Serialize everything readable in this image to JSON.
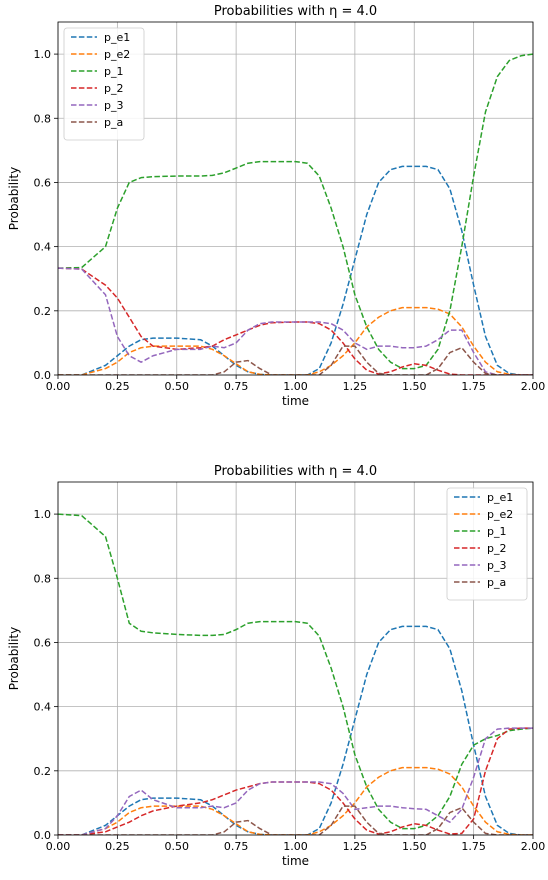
{
  "chart_data": [
    {
      "type": "line",
      "title": "Probabilities with η = 4.0",
      "xlabel": "time",
      "ylabel": "Probability",
      "xlim": [
        0,
        2
      ],
      "ylim": [
        0,
        1.1
      ],
      "xticks": [
        "0.00",
        "0.25",
        "0.50",
        "0.75",
        "1.00",
        "1.25",
        "1.50",
        "1.75",
        "2.00"
      ],
      "yticks": [
        "0.0",
        "0.2",
        "0.4",
        "0.6",
        "0.8",
        "1.0"
      ],
      "grid": true,
      "legend_position": "top-left",
      "x": [
        0,
        0.1,
        0.2,
        0.25,
        0.3,
        0.35,
        0.4,
        0.5,
        0.6,
        0.65,
        0.7,
        0.75,
        0.8,
        0.85,
        0.9,
        1.0,
        1.05,
        1.1,
        1.15,
        1.2,
        1.25,
        1.3,
        1.35,
        1.4,
        1.45,
        1.5,
        1.55,
        1.6,
        1.65,
        1.7,
        1.75,
        1.8,
        1.85,
        1.9,
        1.95,
        2.0
      ],
      "series": [
        {
          "name": "p_e1",
          "color": "#1f77b4",
          "values": [
            0,
            0,
            0.03,
            0.06,
            0.09,
            0.11,
            0.115,
            0.115,
            0.11,
            0.09,
            0.06,
            0.03,
            0.01,
            0.002,
            0,
            0,
            0,
            0.02,
            0.1,
            0.22,
            0.36,
            0.5,
            0.6,
            0.64,
            0.65,
            0.65,
            0.65,
            0.64,
            0.58,
            0.45,
            0.28,
            0.12,
            0.03,
            0.005,
            0,
            0
          ]
        },
        {
          "name": "p_e2",
          "color": "#ff7f0e",
          "values": [
            0,
            0,
            0.02,
            0.04,
            0.07,
            0.085,
            0.09,
            0.09,
            0.09,
            0.08,
            0.06,
            0.035,
            0.01,
            0.002,
            0,
            0,
            0,
            0.01,
            0.03,
            0.06,
            0.1,
            0.15,
            0.18,
            0.2,
            0.21,
            0.21,
            0.21,
            0.205,
            0.19,
            0.15,
            0.09,
            0.04,
            0.01,
            0.002,
            0,
            0
          ]
        },
        {
          "name": "p_1",
          "color": "#2ca02c",
          "values": [
            0.333,
            0.335,
            0.4,
            0.52,
            0.6,
            0.615,
            0.618,
            0.62,
            0.62,
            0.622,
            0.63,
            0.645,
            0.66,
            0.665,
            0.665,
            0.665,
            0.66,
            0.62,
            0.52,
            0.4,
            0.25,
            0.15,
            0.08,
            0.04,
            0.02,
            0.02,
            0.03,
            0.08,
            0.2,
            0.4,
            0.62,
            0.82,
            0.93,
            0.98,
            0.995,
            1.0
          ]
        },
        {
          "name": "p_2",
          "color": "#d62728",
          "values": [
            0.333,
            0.33,
            0.28,
            0.24,
            0.18,
            0.12,
            0.09,
            0.08,
            0.085,
            0.09,
            0.11,
            0.125,
            0.14,
            0.155,
            0.163,
            0.165,
            0.165,
            0.16,
            0.14,
            0.1,
            0.05,
            0.015,
            0.003,
            0.01,
            0.025,
            0.035,
            0.03,
            0.015,
            0.003,
            0,
            0,
            0,
            0,
            0,
            0,
            0
          ]
        },
        {
          "name": "p_3",
          "color": "#9467bd",
          "values": [
            0.333,
            0.33,
            0.25,
            0.12,
            0.06,
            0.04,
            0.06,
            0.08,
            0.08,
            0.09,
            0.085,
            0.1,
            0.14,
            0.16,
            0.165,
            0.165,
            0.165,
            0.165,
            0.16,
            0.14,
            0.1,
            0.08,
            0.09,
            0.09,
            0.085,
            0.085,
            0.09,
            0.11,
            0.14,
            0.14,
            0.07,
            0.01,
            0,
            0,
            0,
            0
          ]
        },
        {
          "name": "p_a",
          "color": "#8c564b",
          "values": [
            0,
            0,
            0,
            0,
            0,
            0,
            0,
            0,
            0,
            0,
            0.01,
            0.04,
            0.045,
            0.02,
            0,
            0,
            0,
            0,
            0.03,
            0.09,
            0.09,
            0.04,
            0.005,
            0,
            0,
            0,
            0,
            0.02,
            0.07,
            0.085,
            0.04,
            0.005,
            0,
            0,
            0,
            0
          ]
        }
      ]
    },
    {
      "type": "line",
      "title": "Probabilities with η = 4.0",
      "xlabel": "time",
      "ylabel": "Probability",
      "xlim": [
        0,
        2
      ],
      "ylim": [
        0,
        1.1
      ],
      "xticks": [
        "0.00",
        "0.25",
        "0.50",
        "0.75",
        "1.00",
        "1.25",
        "1.50",
        "1.75",
        "2.00"
      ],
      "yticks": [
        "0.0",
        "0.2",
        "0.4",
        "0.6",
        "0.8",
        "1.0"
      ],
      "grid": true,
      "legend_position": "top-right",
      "x": [
        0,
        0.1,
        0.2,
        0.25,
        0.3,
        0.35,
        0.4,
        0.5,
        0.6,
        0.65,
        0.7,
        0.75,
        0.8,
        0.85,
        0.9,
        1.0,
        1.05,
        1.1,
        1.15,
        1.2,
        1.25,
        1.3,
        1.35,
        1.4,
        1.45,
        1.5,
        1.55,
        1.6,
        1.65,
        1.7,
        1.75,
        1.8,
        1.85,
        1.9,
        1.95,
        2.0
      ],
      "series": [
        {
          "name": "p_e1",
          "color": "#1f77b4",
          "values": [
            0,
            0,
            0.03,
            0.06,
            0.09,
            0.11,
            0.115,
            0.115,
            0.11,
            0.09,
            0.06,
            0.03,
            0.01,
            0.002,
            0,
            0,
            0,
            0.02,
            0.1,
            0.22,
            0.36,
            0.5,
            0.6,
            0.64,
            0.65,
            0.65,
            0.65,
            0.64,
            0.58,
            0.45,
            0.28,
            0.12,
            0.03,
            0.005,
            0,
            0
          ]
        },
        {
          "name": "p_e2",
          "color": "#ff7f0e",
          "values": [
            0,
            0,
            0.02,
            0.04,
            0.07,
            0.085,
            0.09,
            0.09,
            0.09,
            0.08,
            0.06,
            0.035,
            0.01,
            0.002,
            0,
            0,
            0,
            0.01,
            0.03,
            0.06,
            0.1,
            0.15,
            0.18,
            0.2,
            0.21,
            0.21,
            0.21,
            0.205,
            0.19,
            0.15,
            0.09,
            0.04,
            0.01,
            0.002,
            0,
            0
          ]
        },
        {
          "name": "p_1",
          "color": "#2ca02c",
          "values": [
            1.0,
            0.995,
            0.93,
            0.8,
            0.66,
            0.635,
            0.63,
            0.625,
            0.622,
            0.622,
            0.625,
            0.64,
            0.66,
            0.665,
            0.665,
            0.665,
            0.66,
            0.62,
            0.52,
            0.4,
            0.25,
            0.15,
            0.08,
            0.04,
            0.02,
            0.02,
            0.03,
            0.06,
            0.12,
            0.22,
            0.28,
            0.3,
            0.31,
            0.325,
            0.33,
            0.333
          ]
        },
        {
          "name": "p_2",
          "color": "#d62728",
          "values": [
            0,
            0,
            0.01,
            0.025,
            0.04,
            0.06,
            0.075,
            0.09,
            0.1,
            0.11,
            0.125,
            0.14,
            0.15,
            0.16,
            0.165,
            0.165,
            0.165,
            0.16,
            0.14,
            0.1,
            0.05,
            0.015,
            0.003,
            0.01,
            0.025,
            0.035,
            0.03,
            0.015,
            0.003,
            0.005,
            0.05,
            0.2,
            0.3,
            0.33,
            0.333,
            0.333
          ]
        },
        {
          "name": "p_3",
          "color": "#9467bd",
          "values": [
            0,
            0,
            0.02,
            0.06,
            0.12,
            0.14,
            0.11,
            0.085,
            0.085,
            0.09,
            0.085,
            0.1,
            0.14,
            0.16,
            0.165,
            0.165,
            0.165,
            0.165,
            0.16,
            0.13,
            0.08,
            0.085,
            0.09,
            0.09,
            0.085,
            0.082,
            0.08,
            0.06,
            0.04,
            0.08,
            0.18,
            0.3,
            0.33,
            0.333,
            0.333,
            0.333
          ]
        },
        {
          "name": "p_a",
          "color": "#8c564b",
          "values": [
            0,
            0,
            0,
            0,
            0,
            0,
            0,
            0,
            0,
            0,
            0.01,
            0.04,
            0.045,
            0.02,
            0,
            0,
            0,
            0,
            0.03,
            0.09,
            0.09,
            0.04,
            0.005,
            0,
            0,
            0,
            0,
            0.02,
            0.07,
            0.085,
            0.04,
            0.005,
            0,
            0,
            0,
            0
          ]
        }
      ]
    }
  ]
}
